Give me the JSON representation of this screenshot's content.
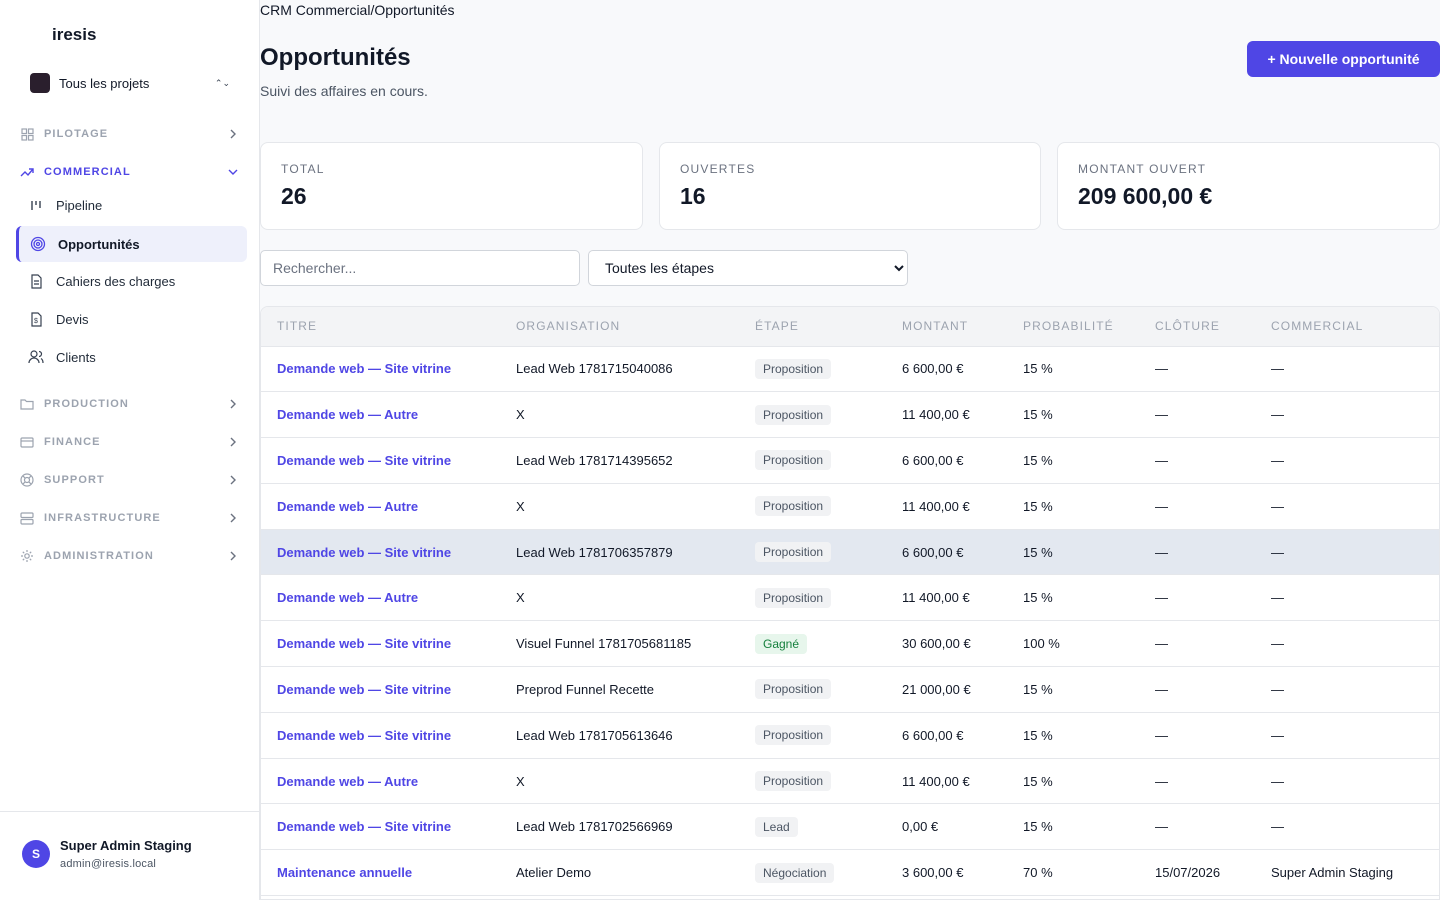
{
  "app": {
    "brand": "iresis"
  },
  "project": {
    "label": "Tous les projets"
  },
  "sidebar": {
    "sections": [
      {
        "label": "PILOTAGE",
        "icon": "grid-icon"
      },
      {
        "label": "COMMERCIAL",
        "icon": "trending-up-icon"
      },
      {
        "label": "PRODUCTION",
        "icon": "folder-icon"
      },
      {
        "label": "FINANCE",
        "icon": "card-icon"
      },
      {
        "label": "SUPPORT",
        "icon": "lifebuoy-icon"
      },
      {
        "label": "INFRASTRUCTURE",
        "icon": "server-icon"
      },
      {
        "label": "ADMINISTRATION",
        "icon": "gear-icon"
      }
    ],
    "commercial_items": [
      {
        "label": "Pipeline",
        "icon": "bar-chart-icon"
      },
      {
        "label": "Opportunités",
        "icon": "target-icon"
      },
      {
        "label": "Cahiers des charges",
        "icon": "document-icon"
      },
      {
        "label": "Devis",
        "icon": "dollar-doc-icon"
      },
      {
        "label": "Clients",
        "icon": "users-icon"
      }
    ]
  },
  "user": {
    "initial": "S",
    "name": "Super Admin Staging",
    "email": "admin@iresis.local"
  },
  "header": {
    "breadcrumb": "CRM Commercial/Opportunités",
    "title": "Opportunités",
    "subtitle": "Suivi des affaires en cours.",
    "new_button": "+ Nouvelle opportunité"
  },
  "stats": [
    {
      "label": "TOTAL",
      "value": "26"
    },
    {
      "label": "OUVERTES",
      "value": "16"
    },
    {
      "label": "MONTANT OUVERT",
      "value": "209 600,00 €"
    }
  ],
  "filters": {
    "search_placeholder": "Rechercher...",
    "stage_selected": "Toutes les étapes"
  },
  "table": {
    "columns": [
      "TITRE",
      "ORGANISATION",
      "ÉTAPE",
      "MONTANT",
      "PROBABILITÉ",
      "CLÔTURE",
      "COMMERCIAL"
    ],
    "rows": [
      {
        "title": "Demande web — Site vitrine",
        "org": "Lead Web 1781715040086",
        "stage": "Proposition",
        "amount": "6 600,00 €",
        "prob": "15 %",
        "close": "—",
        "sales": "—"
      },
      {
        "title": "Demande web — Autre",
        "org": "X",
        "stage": "Proposition",
        "amount": "11 400,00 €",
        "prob": "15 %",
        "close": "—",
        "sales": "—"
      },
      {
        "title": "Demande web — Site vitrine",
        "org": "Lead Web 1781714395652",
        "stage": "Proposition",
        "amount": "6 600,00 €",
        "prob": "15 %",
        "close": "—",
        "sales": "—"
      },
      {
        "title": "Demande web — Autre",
        "org": "X",
        "stage": "Proposition",
        "amount": "11 400,00 €",
        "prob": "15 %",
        "close": "—",
        "sales": "—"
      },
      {
        "title": "Demande web — Site vitrine",
        "org": "Lead Web 1781706357879",
        "stage": "Proposition",
        "amount": "6 600,00 €",
        "prob": "15 %",
        "close": "—",
        "sales": "—"
      },
      {
        "title": "Demande web — Autre",
        "org": "X",
        "stage": "Proposition",
        "amount": "11 400,00 €",
        "prob": "15 %",
        "close": "—",
        "sales": "—"
      },
      {
        "title": "Demande web — Site vitrine",
        "org": "Visuel Funnel 1781705681185",
        "stage": "Gagné",
        "amount": "30 600,00 €",
        "prob": "100 %",
        "close": "—",
        "sales": "—"
      },
      {
        "title": "Demande web — Site vitrine",
        "org": "Preprod Funnel Recette",
        "stage": "Proposition",
        "amount": "21 000,00 €",
        "prob": "15 %",
        "close": "—",
        "sales": "—"
      },
      {
        "title": "Demande web — Site vitrine",
        "org": "Lead Web 1781705613646",
        "stage": "Proposition",
        "amount": "6 600,00 €",
        "prob": "15 %",
        "close": "—",
        "sales": "—"
      },
      {
        "title": "Demande web — Autre",
        "org": "X",
        "stage": "Proposition",
        "amount": "11 400,00 €",
        "prob": "15 %",
        "close": "—",
        "sales": "—"
      },
      {
        "title": "Demande web — Site vitrine",
        "org": "Lead Web 1781702566969",
        "stage": "Lead",
        "amount": "0,00 €",
        "prob": "15 %",
        "close": "—",
        "sales": "—"
      },
      {
        "title": "Maintenance annuelle",
        "org": "Atelier Demo",
        "stage": "Négociation",
        "amount": "3 600,00 €",
        "prob": "70 %",
        "close": "15/07/2026",
        "sales": "Super Admin Staging"
      }
    ]
  },
  "colors": {
    "accent": "#4f46e5",
    "won": "#15803d"
  }
}
